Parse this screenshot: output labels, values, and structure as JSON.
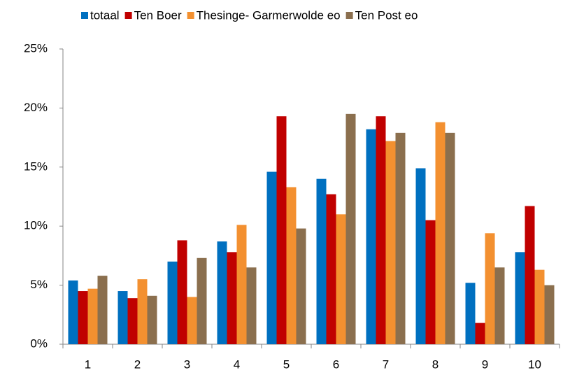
{
  "chart_data": {
    "type": "bar",
    "categories": [
      "1",
      "2",
      "3",
      "4",
      "5",
      "6",
      "7",
      "8",
      "9",
      "10"
    ],
    "series": [
      {
        "name": "totaal",
        "color": "#0070c0",
        "values": [
          5.4,
          4.5,
          7.0,
          8.7,
          14.6,
          14.0,
          18.2,
          14.9,
          5.2,
          7.8
        ]
      },
      {
        "name": "Ten Boer",
        "color": "#c00000",
        "values": [
          4.5,
          3.9,
          8.8,
          7.8,
          19.3,
          12.7,
          19.3,
          10.5,
          1.8,
          11.7
        ]
      },
      {
        "name": "Thesinge- Garmerwolde eo",
        "color": "#f39030",
        "values": [
          4.7,
          5.5,
          4.0,
          10.1,
          13.3,
          11.0,
          17.2,
          18.8,
          9.4,
          6.3
        ]
      },
      {
        "name": "Ten Post eo",
        "color": "#8b6f4e",
        "values": [
          5.8,
          4.1,
          7.3,
          6.5,
          9.8,
          19.5,
          17.9,
          17.9,
          6.5,
          5.0
        ]
      }
    ],
    "ylim": [
      0,
      25
    ],
    "yticks": [
      {
        "value": 0,
        "label": "0%"
      },
      {
        "value": 5,
        "label": "5%"
      },
      {
        "value": 10,
        "label": "10%"
      },
      {
        "value": 15,
        "label": "15%"
      },
      {
        "value": 20,
        "label": "20%"
      },
      {
        "value": 25,
        "label": "25%"
      }
    ],
    "grid": false,
    "legend": "top"
  }
}
